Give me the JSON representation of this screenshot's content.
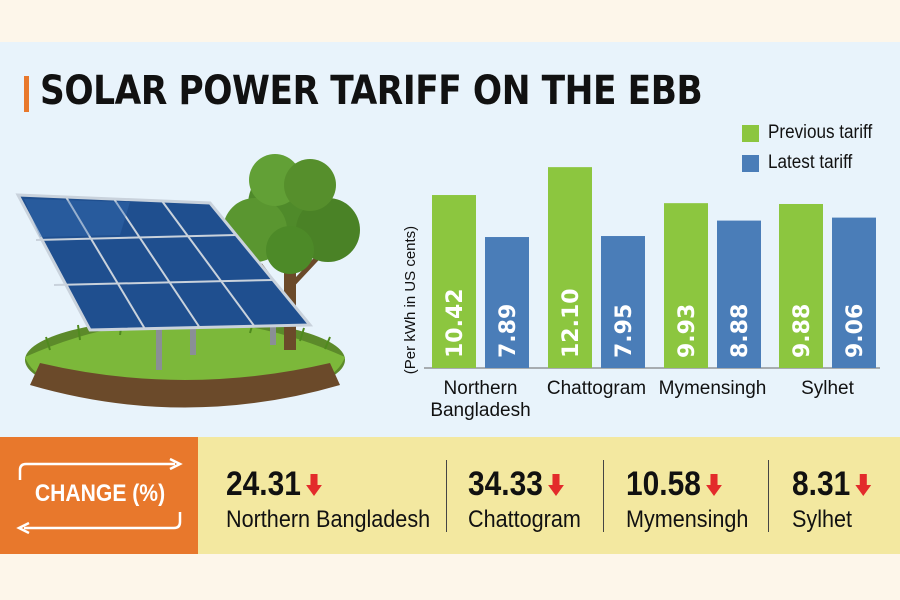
{
  "title": "SOLAR POWER TARIFF ON THE EBB",
  "icons": {
    "illustration": "solar-panel-tree-illustration",
    "change_arrows": "cycle-arrows-icon",
    "decrease": "down-arrow-icon"
  },
  "colors": {
    "previous": "#8cc63f",
    "latest": "#4a7db8",
    "accent": "#e8782c",
    "decrease": "#e32b2b"
  },
  "chart_data": {
    "type": "bar",
    "ylabel": "(Per kWh in US cents)",
    "categories": [
      [
        "Northern",
        "Bangladesh"
      ],
      [
        "Chattogram"
      ],
      [
        "Mymensingh"
      ],
      [
        "Sylhet"
      ]
    ],
    "series": [
      {
        "name": "Previous tariff",
        "values": [
          10.42,
          12.1,
          9.93,
          9.88
        ],
        "labels": [
          "10.42",
          "12.10",
          "9.93",
          "9.88"
        ]
      },
      {
        "name": "Latest tariff",
        "values": [
          7.89,
          7.95,
          8.88,
          9.06
        ],
        "labels": [
          "7.89",
          "7.95",
          "8.88",
          "9.06"
        ]
      }
    ],
    "legend": "top-right",
    "grid": false
  },
  "change": {
    "label": "CHANGE (%)",
    "items": [
      {
        "value": "24.31",
        "region": "Northern Bangladesh"
      },
      {
        "value": "34.33",
        "region": "Chattogram"
      },
      {
        "value": "10.58",
        "region": "Mymensingh"
      },
      {
        "value": "8.31",
        "region": "Sylhet"
      }
    ]
  }
}
